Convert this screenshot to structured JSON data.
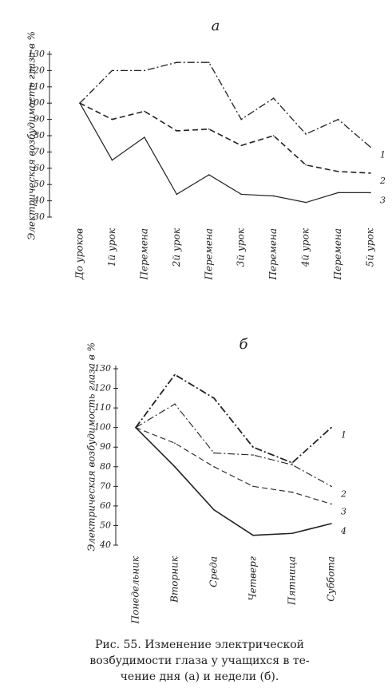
{
  "chart_data": [
    {
      "type": "line",
      "title": "а",
      "ylabel": "Электрическая возбудимость глаза в %",
      "categories": [
        "До уроков",
        "1й урок",
        "Перемена",
        "2й урок",
        "Перемена",
        "3й урок",
        "Перемена",
        "4й урок",
        "Перемена",
        "5й урок"
      ],
      "ylim": [
        30,
        130
      ],
      "yticks": [
        30,
        40,
        50,
        60,
        70,
        80,
        90,
        100,
        110,
        120,
        130
      ],
      "series": [
        {
          "name": "1",
          "color": "#222",
          "line_style": "dashdot",
          "values": [
            100,
            120,
            120,
            125,
            125,
            90,
            103,
            81,
            90,
            73
          ]
        },
        {
          "name": "2",
          "color": "#222",
          "line_style": "dashed",
          "values": [
            100,
            90,
            95,
            83,
            84,
            74,
            80,
            62,
            58,
            57
          ]
        },
        {
          "name": "3",
          "color": "#222",
          "line_style": "solid",
          "values": [
            100,
            65,
            79,
            44,
            56,
            44,
            43,
            39,
            45,
            45
          ]
        }
      ]
    },
    {
      "type": "line",
      "title": "б",
      "ylabel": "Электрическая возбудимость глаза в %",
      "categories": [
        "Понедельник",
        "Вторник",
        "Среда",
        "Четверг",
        "Пятница",
        "Суббота"
      ],
      "ylim": [
        40,
        130
      ],
      "yticks": [
        40,
        50,
        60,
        70,
        80,
        90,
        100,
        110,
        120,
        130
      ],
      "series": [
        {
          "name": "1",
          "color": "#222",
          "line_style": "dashdot",
          "values": [
            100,
            127,
            115,
            90,
            82,
            100
          ]
        },
        {
          "name": "2",
          "color": "#222",
          "line_style": "dashdot",
          "values": [
            100,
            112,
            87,
            86,
            81,
            70
          ]
        },
        {
          "name": "3",
          "color": "#222",
          "line_style": "dashed",
          "values": [
            100,
            92,
            80,
            70,
            67,
            61
          ]
        },
        {
          "name": "4",
          "color": "#222",
          "line_style": "solid",
          "values": [
            100,
            80,
            58,
            45,
            46,
            51
          ]
        }
      ]
    }
  ],
  "caption": [
    "Рис. 55. Изменение электрической",
    "возбудимости глаза у учащихся в те-",
    "чение дня (а) и недели (б)."
  ]
}
